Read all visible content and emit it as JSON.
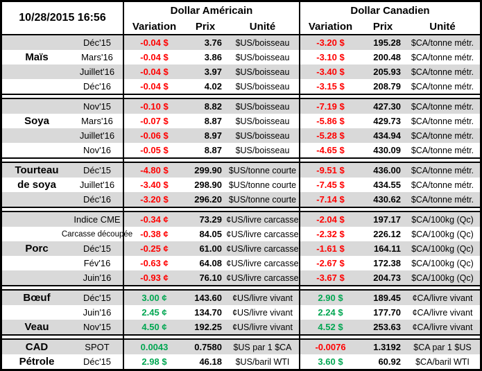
{
  "meta": {
    "timestamp": "10/28/2015 16:56"
  },
  "header": {
    "us_title": "Dollar Américain",
    "ca_title": "Dollar Canadien",
    "variation_label": "Variation",
    "prix_label": "Prix",
    "unite_label": "Unité"
  },
  "colors": {
    "negative": "#FF0000",
    "positive": "#00A651",
    "row_alt": "#D9D9D9",
    "border": "#000000"
  },
  "groups": [
    {
      "id": "mais",
      "rows": [
        {
          "name": "",
          "month": "Déc'15",
          "us_var": "-0.04 $",
          "us_prix": "3.76",
          "us_unit": "$US/boisseau",
          "ca_var": "-3.20 $",
          "ca_prix": "195.28",
          "ca_unit": "$CA/tonne métr."
        },
        {
          "name": "Maïs",
          "month": "Mars'16",
          "us_var": "-0.04 $",
          "us_prix": "3.86",
          "us_unit": "$US/boisseau",
          "ca_var": "-3.10 $",
          "ca_prix": "200.48",
          "ca_unit": "$CA/tonne métr."
        },
        {
          "name": "",
          "month": "Juillet'16",
          "us_var": "-0.04 $",
          "us_prix": "3.97",
          "us_unit": "$US/boisseau",
          "ca_var": "-3.40 $",
          "ca_prix": "205.93",
          "ca_unit": "$CA/tonne métr."
        },
        {
          "name": "",
          "month": "Déc'16",
          "us_var": "-0.04 $",
          "us_prix": "4.02",
          "us_unit": "$US/boisseau",
          "ca_var": "-3.15 $",
          "ca_prix": "208.79",
          "ca_unit": "$CA/tonne métr."
        }
      ]
    },
    {
      "id": "soya",
      "rows": [
        {
          "name": "",
          "month": "Nov'15",
          "us_var": "-0.10 $",
          "us_prix": "8.82",
          "us_unit": "$US/boisseau",
          "ca_var": "-7.19 $",
          "ca_prix": "427.30",
          "ca_unit": "$CA/tonne métr."
        },
        {
          "name": "Soya",
          "month": "Mars'16",
          "us_var": "-0.07 $",
          "us_prix": "8.87",
          "us_unit": "$US/boisseau",
          "ca_var": "-5.86 $",
          "ca_prix": "429.73",
          "ca_unit": "$CA/tonne métr."
        },
        {
          "name": "",
          "month": "Juillet'16",
          "us_var": "-0.06 $",
          "us_prix": "8.97",
          "us_unit": "$US/boisseau",
          "ca_var": "-5.28 $",
          "ca_prix": "434.94",
          "ca_unit": "$CA/tonne métr."
        },
        {
          "name": "",
          "month": "Nov'16",
          "us_var": "-0.05 $",
          "us_prix": "8.87",
          "us_unit": "$US/boisseau",
          "ca_var": "-4.65 $",
          "ca_prix": "430.09",
          "ca_unit": "$CA/tonne métr."
        }
      ]
    },
    {
      "id": "tourteau-de-soya",
      "rows": [
        {
          "name": "Tourteau",
          "month": "Déc'15",
          "us_var": "-4.80 $",
          "us_prix": "299.90",
          "us_unit": "$US/tonne courte",
          "ca_var": "-9.51 $",
          "ca_prix": "436.00",
          "ca_unit": "$CA/tonne métr."
        },
        {
          "name": "de soya",
          "month": "Juillet'16",
          "us_var": "-3.40 $",
          "us_prix": "298.90",
          "us_unit": "$US/tonne courte",
          "ca_var": "-7.45 $",
          "ca_prix": "434.55",
          "ca_unit": "$CA/tonne métr."
        },
        {
          "name": "",
          "month": "Déc'16",
          "us_var": "-3.20 $",
          "us_prix": "296.20",
          "us_unit": "$US/tonne courte",
          "ca_var": "-7.14 $",
          "ca_prix": "430.62",
          "ca_unit": "$CA/tonne métr."
        }
      ]
    },
    {
      "id": "porc",
      "rows": [
        {
          "name": "",
          "month": "Indice CME",
          "us_var": "-0.34 ¢",
          "us_prix": "73.29",
          "us_unit": "¢US/livre carcasse",
          "ca_var": "-2.04 $",
          "ca_prix": "197.17",
          "ca_unit": "$CA/100kg (Qc)"
        },
        {
          "name": "",
          "month": "Carcasse découpée",
          "us_var": "-0.38 ¢",
          "us_prix": "84.05",
          "us_unit": "¢US/livre carcasse",
          "ca_var": "-2.32 $",
          "ca_prix": "226.12",
          "ca_unit": "$CA/100kg (Qc)"
        },
        {
          "name": "Porc",
          "month": "Déc'15",
          "us_var": "-0.25 ¢",
          "us_prix": "61.00",
          "us_unit": "¢US/livre carcasse",
          "ca_var": "-1.61 $",
          "ca_prix": "164.11",
          "ca_unit": "$CA/100kg (Qc)"
        },
        {
          "name": "",
          "month": "Fév'16",
          "us_var": "-0.63 ¢",
          "us_prix": "64.08",
          "us_unit": "¢US/livre carcasse",
          "ca_var": "-2.67 $",
          "ca_prix": "172.38",
          "ca_unit": "$CA/100kg (Qc)"
        },
        {
          "name": "",
          "month": "Juin'16",
          "us_var": "-0.93 ¢",
          "us_prix": "76.10",
          "us_unit": "¢US/livre carcasse",
          "ca_var": "-3.67 $",
          "ca_prix": "204.73",
          "ca_unit": "$CA/100kg (Qc)"
        }
      ]
    },
    {
      "id": "boeuf-veau",
      "rows": [
        {
          "name": "Bœuf",
          "month": "Déc'15",
          "us_var": "3.00 ¢",
          "us_prix": "143.60",
          "us_unit": "¢US/livre vivant",
          "ca_var": "2.90 $",
          "ca_prix": "189.45",
          "ca_unit": "¢CA/livre vivant"
        },
        {
          "name": "",
          "month": "Juin'16",
          "us_var": "2.45 ¢",
          "us_prix": "134.70",
          "us_unit": "¢US/livre vivant",
          "ca_var": "2.24 $",
          "ca_prix": "177.70",
          "ca_unit": "¢CA/livre vivant"
        },
        {
          "name": "Veau",
          "month": "Nov'15",
          "us_var": "4.50 ¢",
          "us_prix": "192.25",
          "us_unit": "¢US/livre vivant",
          "ca_var": "4.52 $",
          "ca_prix": "253.63",
          "ca_unit": "¢CA/livre vivant"
        }
      ]
    },
    {
      "id": "cad-petrole",
      "rows": [
        {
          "name": "CAD",
          "month": "SPOT",
          "us_var": "0.0043",
          "us_prix": "0.7580",
          "us_unit": "$US par 1 $CA",
          "ca_var": "-0.0076",
          "ca_prix": "1.3192",
          "ca_unit": "$CA par 1 $US"
        },
        {
          "name": "Pétrole",
          "month": "Déc'15",
          "us_var": "2.98 $",
          "us_prix": "46.18",
          "us_unit": "$US/baril WTI",
          "ca_var": "3.60 $",
          "ca_prix": "60.92",
          "ca_unit": "$CA/baril WTI"
        }
      ]
    }
  ]
}
